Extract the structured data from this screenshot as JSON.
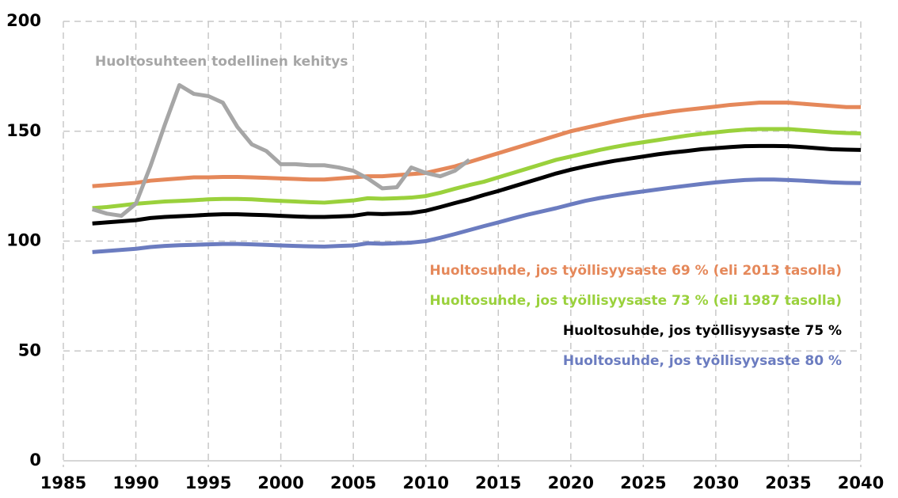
{
  "chart_data": {
    "type": "line",
    "x": [
      1987,
      1988,
      1989,
      1990,
      1991,
      1992,
      1993,
      1994,
      1995,
      1996,
      1997,
      1998,
      1999,
      2000,
      2001,
      2002,
      2003,
      2004,
      2005,
      2006,
      2007,
      2008,
      2009,
      2010,
      2011,
      2012,
      2013,
      2014,
      2015,
      2016,
      2017,
      2018,
      2019,
      2020,
      2021,
      2022,
      2023,
      2024,
      2025,
      2026,
      2027,
      2028,
      2029,
      2030,
      2031,
      2032,
      2033,
      2034,
      2035,
      2036,
      2037,
      2038,
      2039,
      2040
    ],
    "series": [
      {
        "name": "Huoltosuhde, jos työllisyysaste 69 % (eli 2013 tasolla)",
        "color": "#e5885a",
        "values": [
          125,
          125.5,
          126,
          126.5,
          127.5,
          128,
          128.5,
          129,
          129,
          129.2,
          129.2,
          129,
          128.8,
          128.5,
          128.3,
          128,
          128,
          128.5,
          129,
          129.5,
          129.5,
          130,
          130.5,
          131,
          132.5,
          134,
          136,
          138,
          140,
          142,
          144,
          146,
          148,
          150,
          151.5,
          153,
          154.5,
          155.8,
          157,
          158,
          159,
          159.8,
          160.5,
          161.2,
          162,
          162.5,
          163,
          163,
          163,
          162.5,
          162,
          161.5,
          161,
          161
        ]
      },
      {
        "name": "Huoltosuhde, jos työllisyysaste 73 % (eli 1987 tasolla)",
        "color": "#9ad13c",
        "values": [
          115,
          115.5,
          116.2,
          117,
          117.5,
          118,
          118.3,
          118.6,
          119,
          119.2,
          119.2,
          119,
          118.6,
          118.3,
          118,
          117.7,
          117.5,
          118,
          118.5,
          119.5,
          119.3,
          119.5,
          119.8,
          120.5,
          122,
          123.8,
          125.5,
          127,
          129,
          131,
          133,
          135,
          137,
          138.5,
          140,
          141.5,
          142.8,
          144,
          145,
          146,
          147,
          148,
          148.8,
          149.5,
          150.2,
          150.7,
          151,
          151,
          151,
          150.5,
          150,
          149.5,
          149.2,
          149
        ]
      },
      {
        "name": "Huoltosuhde, jos työllisyysaste 75 %",
        "color": "#000000",
        "values": [
          108,
          108.5,
          109,
          109.5,
          110.5,
          111,
          111.3,
          111.6,
          112,
          112.2,
          112.2,
          112,
          111.8,
          111.5,
          111.2,
          111,
          111,
          111.2,
          111.5,
          112.5,
          112.3,
          112.5,
          112.8,
          113.8,
          115.5,
          117.3,
          119,
          121,
          122.8,
          124.8,
          126.8,
          128.8,
          130.8,
          132.5,
          134,
          135.3,
          136.5,
          137.5,
          138.5,
          139.5,
          140.3,
          141,
          141.8,
          142.3,
          142.8,
          143.2,
          143.3,
          143.3,
          143.2,
          142.8,
          142.3,
          141.8,
          141.6,
          141.5
        ]
      },
      {
        "name": "Huoltosuhde, jos työllisyysaste 80 %",
        "color": "#6b7cc0",
        "values": [
          95,
          95.5,
          96,
          96.5,
          97.3,
          97.8,
          98.1,
          98.3,
          98.5,
          98.7,
          98.7,
          98.5,
          98.3,
          98,
          97.8,
          97.6,
          97.5,
          97.8,
          98,
          99,
          98.8,
          99,
          99.3,
          100,
          101.5,
          103.2,
          105,
          106.8,
          108.5,
          110.3,
          112,
          113.5,
          115,
          116.7,
          118.3,
          119.6,
          120.7,
          121.7,
          122.6,
          123.5,
          124.4,
          125.2,
          126,
          126.7,
          127.3,
          127.8,
          128,
          128,
          127.8,
          127.5,
          127.1,
          126.7,
          126.5,
          126.4
        ]
      },
      {
        "name": "Huoltosuhteen todellinen kehitys",
        "color": "#a6a6a6",
        "values": [
          114.5,
          112.5,
          111.5,
          117,
          134,
          153,
          171,
          167,
          166,
          163,
          152,
          144,
          141,
          135,
          135,
          134.5,
          134.5,
          133.5,
          132,
          128.5,
          124,
          124.5,
          133.5,
          131,
          129.5,
          132,
          137,
          null,
          null,
          null,
          null,
          null,
          null,
          null,
          null,
          null,
          null,
          null,
          null,
          null,
          null,
          null,
          null,
          null,
          null,
          null,
          null,
          null,
          null,
          null,
          null,
          null,
          null,
          null
        ]
      }
    ],
    "xlim": [
      1985,
      2040
    ],
    "xticks": [
      1985,
      1990,
      1995,
      2000,
      2005,
      2010,
      2015,
      2020,
      2025,
      2030,
      2035,
      2040
    ],
    "ylim": [
      0,
      200
    ],
    "yticks": [
      0,
      50,
      100,
      150,
      200
    ],
    "grid": true
  }
}
